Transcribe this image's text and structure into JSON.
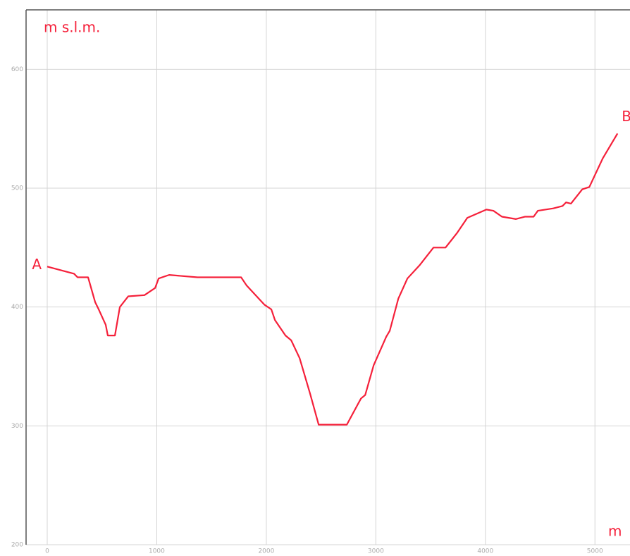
{
  "chart_data": {
    "type": "line",
    "y_label": "m s.l.m.",
    "x_label": "m",
    "annotations": [
      {
        "text": "A",
        "x": 0,
        "y": 434
      },
      {
        "text": "B",
        "x": 5206,
        "y": 546
      }
    ],
    "x": [
      0,
      245,
      277,
      373,
      438,
      470,
      534,
      553,
      618,
      663,
      740,
      888,
      985,
      1017,
      1113,
      1371,
      1770,
      1821,
      1982,
      2046,
      2079,
      2175,
      2227,
      2304,
      2400,
      2478,
      2735,
      2864,
      2903,
      2980,
      3095,
      3127,
      3205,
      3288,
      3398,
      3526,
      3636,
      3739,
      3835,
      4009,
      4073,
      4151,
      4279,
      4363,
      4440,
      4479,
      4620,
      4704,
      4736,
      4781,
      4884,
      4949,
      5071,
      5206
    ],
    "series": [
      {
        "color": "#f5203a",
        "values": [
          434,
          428,
          425,
          425,
          404,
          398,
          385,
          376,
          376,
          400,
          409,
          410,
          416,
          424,
          427,
          425,
          425,
          418,
          402,
          398,
          389,
          376,
          372,
          357,
          327,
          301,
          301,
          323,
          326,
          351,
          375,
          380,
          407,
          424,
          435,
          450,
          450,
          462,
          475,
          482,
          481,
          476,
          474,
          476,
          476,
          481,
          483,
          485,
          488,
          487,
          499,
          501,
          525,
          546
        ]
      }
    ],
    "xlim": [
      -193,
      5320
    ],
    "ylim": [
      200,
      650
    ],
    "xticks": [
      0,
      1000,
      2000,
      3000,
      4000,
      5000
    ],
    "yticks": [
      200,
      300,
      400,
      500,
      600
    ],
    "grid": true
  }
}
